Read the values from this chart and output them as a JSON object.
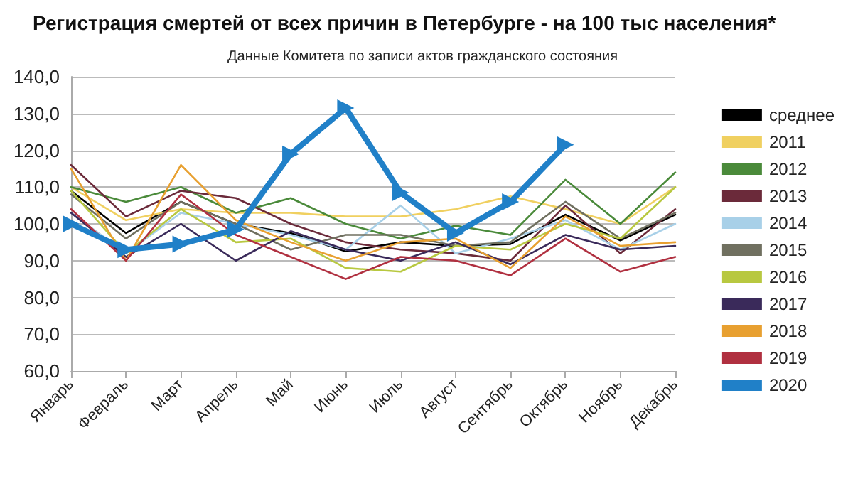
{
  "chart_data": {
    "type": "line",
    "title": "Регистрация смертей от всех причин в Петербурге - на 100 тыс населения*",
    "subtitle": "Данные Комитета по записи актов гражданского состояния",
    "categories": [
      "Январь",
      "Февраль",
      "Март",
      "Апрель",
      "Май",
      "Июнь",
      "Июль",
      "Август",
      "Сентябрь",
      "Октябрь",
      "Ноябрь",
      "Декабрь"
    ],
    "ylim": [
      60,
      140
    ],
    "yticks": [
      {
        "value": 60,
        "label": "60,0"
      },
      {
        "value": 70,
        "label": "70,0"
      },
      {
        "value": 80,
        "label": "80,0"
      },
      {
        "value": 90,
        "label": "90,0"
      },
      {
        "value": 100,
        "label": "100,0"
      },
      {
        "value": 110,
        "label": "110,0"
      },
      {
        "value": 120,
        "label": "120,0"
      },
      {
        "value": 130,
        "label": "130,0"
      },
      {
        "value": 140,
        "label": "140,0"
      }
    ],
    "grid": "y",
    "legend": "right",
    "marker": "none",
    "line_style": "solid",
    "series": [
      {
        "name": "среднее",
        "color": "#000000",
        "values": [
          109,
          97.5,
          106,
          100,
          97.5,
          92.5,
          95,
          94,
          94.5,
          102.5,
          95.5,
          102.5
        ]
      },
      {
        "name": "2011",
        "color": "#f0d060",
        "values": [
          110,
          101,
          104,
          103,
          103,
          102,
          102,
          104,
          107.5,
          104,
          100,
          110
        ]
      },
      {
        "name": "2012",
        "color": "#4a8a3a",
        "values": [
          110,
          106,
          110,
          103,
          107,
          100,
          96,
          99.5,
          97,
          112,
          100,
          114
        ]
      },
      {
        "name": "2013",
        "color": "#6b2a3a",
        "values": [
          116,
          102,
          109,
          107,
          100,
          95,
          93,
          92,
          90,
          105,
          92,
          104
        ]
      },
      {
        "name": "2014",
        "color": "#a8d0e8",
        "values": [
          103,
          92,
          103,
          100,
          97,
          93,
          105,
          92,
          96,
          101,
          93,
          100
        ]
      },
      {
        "name": "2015",
        "color": "#707060",
        "values": [
          108,
          96,
          106,
          100,
          93,
          97,
          97,
          94,
          95,
          106,
          96,
          103
        ]
      },
      {
        "name": "2016",
        "color": "#b8c840",
        "values": [
          109,
          92,
          104,
          95,
          96,
          88,
          87,
          94,
          93,
          100,
          96,
          110
        ]
      },
      {
        "name": "2017",
        "color": "#3a2a5a",
        "values": [
          103,
          91,
          100,
          90,
          98,
          93,
          90,
          95,
          89,
          97,
          93,
          94
        ]
      },
      {
        "name": "2018",
        "color": "#e8a030",
        "values": [
          115,
          90,
          116,
          101,
          95,
          90,
          95,
          96,
          88,
          102,
          94,
          95
        ]
      },
      {
        "name": "2019",
        "color": "#b03040",
        "values": [
          104,
          90,
          108,
          97,
          91,
          85,
          91,
          90,
          86,
          96,
          87,
          91
        ]
      },
      {
        "name": "2020",
        "color": "#2080c8",
        "marker": "triangle",
        "values": [
          100,
          93,
          94.5,
          98.5,
          119,
          131.5,
          108.5,
          97.5,
          106,
          121.5,
          null,
          null
        ]
      }
    ]
  }
}
